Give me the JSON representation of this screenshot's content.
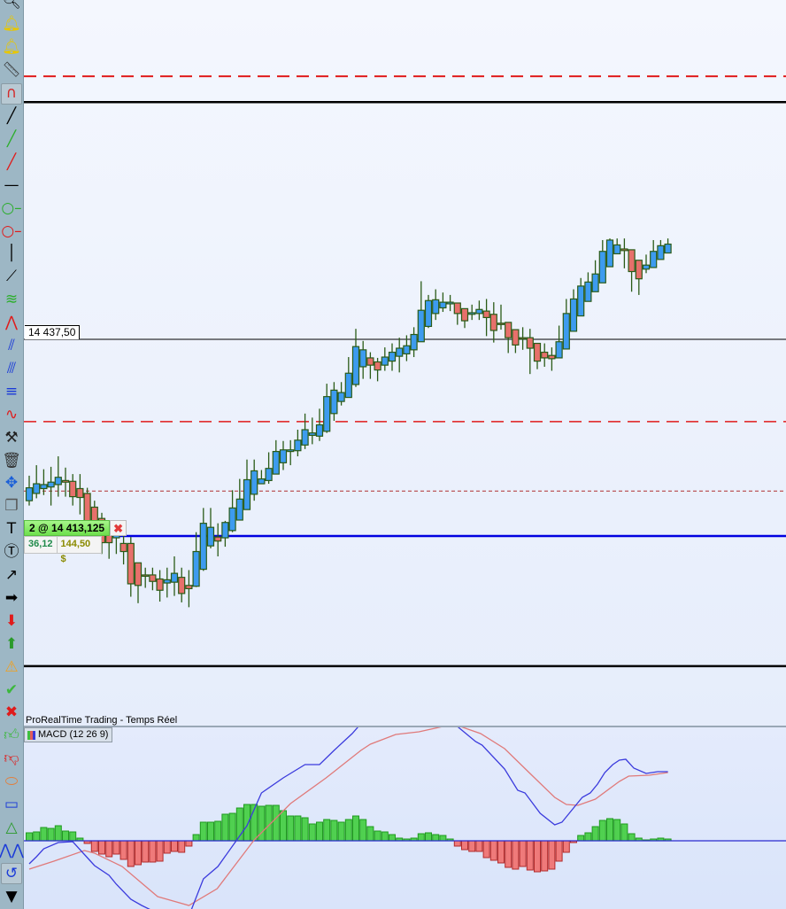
{
  "toolbar": {
    "background": "#9db7c5",
    "tools": [
      {
        "icon": "search-icon",
        "glyph": "🔍︎",
        "color": "#000"
      },
      {
        "icon": "alert-bell-icon",
        "glyph": "🔔︎",
        "color": "#e8c700"
      },
      {
        "icon": "alert-bell-cursor-icon",
        "glyph": "🔔︎",
        "color": "#e8c700"
      },
      {
        "icon": "ruler-icon",
        "glyph": "📏︎",
        "color": "#333"
      },
      {
        "icon": "magnet-icon",
        "glyph": "∩",
        "color": "#d42a2a",
        "active": true
      },
      {
        "icon": "trendline-black-icon",
        "glyph": "╱",
        "color": "#000"
      },
      {
        "icon": "trendline-green-icon",
        "glyph": "╱",
        "color": "#2cae2c"
      },
      {
        "icon": "trendline-red-icon",
        "glyph": "╱",
        "color": "#e01b1b"
      },
      {
        "icon": "horizontal-line-icon",
        "glyph": "—",
        "color": "#000"
      },
      {
        "icon": "ray-green-icon",
        "glyph": "○–",
        "color": "#2cae2c"
      },
      {
        "icon": "ray-red-icon",
        "glyph": "○–",
        "color": "#e01b1b"
      },
      {
        "icon": "vertical-line-icon",
        "glyph": "│",
        "color": "#000"
      },
      {
        "icon": "segment-icon",
        "glyph": "⟋",
        "color": "#000"
      },
      {
        "icon": "channel-icon",
        "glyph": "≋",
        "color": "#2cae2c"
      },
      {
        "icon": "fibonacci-fan-icon",
        "glyph": "⋀",
        "color": "#e01b1b"
      },
      {
        "icon": "parallel-channel-icon",
        "glyph": "⫽",
        "color": "#1a3ad8"
      },
      {
        "icon": "regression-channel-icon",
        "glyph": "⫻",
        "color": "#1a3ad8"
      },
      {
        "icon": "fibonacci-retracement-icon",
        "glyph": "≡",
        "color": "#1a3ad8"
      },
      {
        "icon": "trend-wave-icon",
        "glyph": "∿",
        "color": "#e01b1b"
      },
      {
        "icon": "tools-icon",
        "glyph": "⚒",
        "color": "#222"
      },
      {
        "icon": "trash-icon",
        "glyph": "🗑︎",
        "color": "#333"
      },
      {
        "icon": "move-icon",
        "glyph": "✥",
        "color": "#1a5fd8"
      },
      {
        "icon": "copy-icon",
        "glyph": "❐",
        "color": "#555"
      },
      {
        "icon": "text-icon",
        "glyph": "T",
        "color": "#000"
      },
      {
        "icon": "text-bubble-icon",
        "glyph": "Ⓣ",
        "color": "#000"
      },
      {
        "icon": "arrow-diagonal-icon",
        "glyph": "↗",
        "color": "#000"
      },
      {
        "icon": "arrow-right-icon",
        "glyph": "➡",
        "color": "#000"
      },
      {
        "icon": "arrow-down-icon",
        "glyph": "⬇",
        "color": "#e01b1b"
      },
      {
        "icon": "arrow-up-icon",
        "glyph": "⬆",
        "color": "#2a9a2a"
      },
      {
        "icon": "warning-icon",
        "glyph": "⚠",
        "color": "#f0a020"
      },
      {
        "icon": "checkmark-icon",
        "glyph": "✔",
        "color": "#3cb83c"
      },
      {
        "icon": "cross-icon",
        "glyph": "✖",
        "color": "#e01b1b"
      },
      {
        "icon": "thumbs-up-icon",
        "glyph": "👍︎",
        "color": "#3cb83c"
      },
      {
        "icon": "thumbs-down-icon",
        "glyph": "👎︎",
        "color": "#e01b1b"
      },
      {
        "icon": "ellipse-icon",
        "glyph": "⬭",
        "color": "#e08040"
      },
      {
        "icon": "rectangle-icon",
        "glyph": "▭",
        "color": "#1a3ad8"
      },
      {
        "icon": "triangle-icon",
        "glyph": "△",
        "color": "#2a9a2a"
      },
      {
        "icon": "pattern-icon",
        "glyph": "⋀⋀",
        "color": "#1a3ad8"
      },
      {
        "icon": "undo-cursor-icon",
        "glyph": "↺",
        "color": "#1a3ad8",
        "active": true
      },
      {
        "icon": "more-tools-dropdown-icon",
        "glyph": "▼",
        "color": "#000"
      }
    ]
  },
  "price_label": "14 437,50",
  "order": {
    "label": "2 @ 14 413,125",
    "close_icon": "close-icon",
    "points": "36,12",
    "pnl": "144,50 $"
  },
  "panel_title": "ProRealTime Trading - Temps Réel",
  "macd_legend": "MACD (12 26 9)",
  "colors": {
    "up": "#3d9bef",
    "down": "#e7706b",
    "candle_border": "#2a5b17",
    "hist_up": "#50d050",
    "hist_down": "#ef7a7a",
    "macd_line": "#3b3bdd",
    "signal_line": "#e07a7a",
    "zero_line": "#2a2ad0"
  },
  "chart_data": [
    {
      "type": "candlestick",
      "price_lines": [
        {
          "price": 14470.1,
          "color": "#e01b1b",
          "style": "dashed"
        },
        {
          "price": 14466.9,
          "color": "#000000",
          "style": "solid-thick"
        },
        {
          "price": 14437.5,
          "color": "#000000",
          "style": "solid",
          "label": "14 437,50"
        },
        {
          "price": 14427.3,
          "color": "#e01b1b",
          "style": "dashed"
        },
        {
          "price": 14418.7,
          "color": "#b03030",
          "style": "dashed-thin"
        },
        {
          "price": 14413.125,
          "color": "#0000e0",
          "style": "solid-thick"
        },
        {
          "price": 14397.0,
          "color": "#000000",
          "style": "solid-thick"
        }
      ],
      "ohlc": [
        [
          14417.5,
          14420.6,
          14416.9,
          14419.1
        ],
        [
          14418.4,
          14421.9,
          14417.8,
          14419.6
        ],
        [
          14419.0,
          14421.4,
          14418.2,
          14419.5
        ],
        [
          14419.2,
          14421.7,
          14416.9,
          14419.8
        ],
        [
          14419.5,
          14423.0,
          14418.0,
          14420.4
        ],
        [
          14420.0,
          14421.6,
          14418.0,
          14419.8
        ],
        [
          14419.9,
          14420.8,
          14416.9,
          14418.0
        ],
        [
          14419.0,
          14420.8,
          14415.8,
          14417.9
        ],
        [
          14418.4,
          14419.1,
          14411.4,
          14414.7
        ],
        [
          14416.7,
          14417.5,
          14412.5,
          14413.6
        ],
        [
          14415.3,
          14416.0,
          14410.9,
          14412.3
        ],
        [
          14413.8,
          14414.7,
          14410.3,
          14412.3
        ],
        [
          14412.9,
          14414.7,
          14410.9,
          14413.2
        ],
        [
          14412.2,
          14414.6,
          14409.6,
          14411.2
        ],
        [
          14412.2,
          14413.0,
          14405.6,
          14407.2
        ],
        [
          14409.8,
          14409.8,
          14404.8,
          14407.0
        ],
        [
          14408.3,
          14409.2,
          14406.7,
          14408.2
        ],
        [
          14408.3,
          14409.2,
          14406.4,
          14407.5
        ],
        [
          14407.8,
          14408.9,
          14405.0,
          14406.4
        ],
        [
          14407.3,
          14409.2,
          14405.5,
          14407.7
        ],
        [
          14407.4,
          14410.6,
          14405.7,
          14408.5
        ],
        [
          14408.0,
          14409.2,
          14404.9,
          14406.0
        ],
        [
          14407.0,
          14408.9,
          14404.3,
          14406.6
        ],
        [
          14406.9,
          14413.6,
          14406.8,
          14411.2
        ],
        [
          14409.0,
          14416.6,
          14408.8,
          14414.7
        ],
        [
          14411.9,
          14416.6,
          14411.6,
          14414.2
        ],
        [
          14413.0,
          14414.7,
          14410.6,
          14412.5
        ],
        [
          14412.9,
          14415.0,
          14411.8,
          14414.8
        ],
        [
          14413.8,
          14418.8,
          14413.6,
          14416.6
        ],
        [
          14415.1,
          14420.2,
          14415.1,
          14417.7
        ],
        [
          14416.4,
          14422.6,
          14416.4,
          14420.1
        ],
        [
          14418.3,
          14422.6,
          14417.5,
          14421.2
        ],
        [
          14419.6,
          14421.3,
          14419.6,
          14420.2
        ],
        [
          14420.0,
          14423.5,
          14419.6,
          14421.5
        ],
        [
          14420.8,
          14425.0,
          14420.8,
          14423.6
        ],
        [
          14422.2,
          14424.9,
          14421.3,
          14423.8
        ],
        [
          14423.6,
          14425.0,
          14421.9,
          14423.8
        ],
        [
          14423.7,
          14426.3,
          14423.0,
          14425.0
        ],
        [
          14424.4,
          14428.3,
          14423.9,
          14426.3
        ],
        [
          14425.6,
          14427.8,
          14424.5,
          14425.9
        ],
        [
          14425.5,
          14428.9,
          14424.9,
          14426.9
        ],
        [
          14426.1,
          14432.0,
          14425.9,
          14430.4
        ],
        [
          14428.3,
          14432.2,
          14427.4,
          14431.2
        ],
        [
          14429.8,
          14432.2,
          14429.3,
          14430.9
        ],
        [
          14430.3,
          14435.3,
          14430.3,
          14433.3
        ],
        [
          14431.9,
          14438.8,
          14431.6,
          14436.6
        ],
        [
          14434.1,
          14437.3,
          14432.6,
          14436.2
        ],
        [
          14435.2,
          14435.9,
          14432.6,
          14434.3
        ],
        [
          14434.7,
          14435.2,
          14432.3,
          14433.7
        ],
        [
          14434.3,
          14436.5,
          14433.6,
          14435.3
        ],
        [
          14434.8,
          14437.0,
          14433.6,
          14435.9
        ],
        [
          14435.4,
          14437.7,
          14433.4,
          14436.4
        ],
        [
          14435.7,
          14438.0,
          14434.8,
          14436.7
        ],
        [
          14436.2,
          14439.0,
          14435.3,
          14438.1
        ],
        [
          14437.2,
          14444.7,
          14437.2,
          14441.1
        ],
        [
          14439.1,
          14443.0,
          14438.9,
          14442.3
        ],
        [
          14440.7,
          14443.7,
          14439.9,
          14442.4
        ],
        [
          14441.4,
          14443.3,
          14440.9,
          14442.1
        ],
        [
          14441.9,
          14443.0,
          14441.0,
          14442.1
        ],
        [
          14442.0,
          14442.0,
          14439.3,
          14440.7
        ],
        [
          14441.3,
          14441.3,
          14438.9,
          14439.8
        ],
        [
          14440.6,
          14441.8,
          14439.9,
          14440.8
        ],
        [
          14440.7,
          14442.3,
          14439.9,
          14441.2
        ],
        [
          14441.0,
          14442.5,
          14437.9,
          14440.2
        ],
        [
          14440.6,
          14442.1,
          14437.1,
          14438.6
        ],
        [
          14439.5,
          14441.8,
          14438.7,
          14439.4
        ],
        [
          14439.6,
          14439.6,
          14435.8,
          14437.7
        ],
        [
          14438.7,
          14438.7,
          14435.8,
          14436.8
        ],
        [
          14437.7,
          14439.0,
          14436.2,
          14437.6
        ],
        [
          14437.7,
          14438.8,
          14433.2,
          14436.4
        ],
        [
          14437.0,
          14437.0,
          14433.8,
          14434.8
        ],
        [
          14435.9,
          14437.0,
          14434.1,
          14435.2
        ],
        [
          14435.5,
          14436.5,
          14433.6,
          14435.1
        ],
        [
          14435.2,
          14439.2,
          14435.2,
          14437.2
        ],
        [
          14436.3,
          14442.5,
          14436.3,
          14440.7
        ],
        [
          14438.5,
          14443.7,
          14438.5,
          14442.5
        ],
        [
          14440.4,
          14445.1,
          14440.4,
          14444.1
        ],
        [
          14442.2,
          14445.8,
          14442.2,
          14444.6
        ],
        [
          14443.4,
          14447.3,
          14443.4,
          14445.6
        ],
        [
          14444.5,
          14449.8,
          14444.5,
          14448.4
        ],
        [
          14446.5,
          14450.0,
          14446.5,
          14449.8
        ],
        [
          14448.1,
          14450.0,
          14448.1,
          14449.2
        ],
        [
          14448.7,
          14450.0,
          14446.3,
          14448.5
        ],
        [
          14448.6,
          14448.6,
          14443.4,
          14445.9
        ],
        [
          14447.3,
          14447.3,
          14443.0,
          14445.0
        ],
        [
          14446.2,
          14448.0,
          14445.7,
          14446.7
        ],
        [
          14446.4,
          14449.8,
          14446.4,
          14448.4
        ],
        [
          14447.4,
          14449.8,
          14447.4,
          14449.1
        ],
        [
          14448.2,
          14450.0,
          14448.2,
          14449.3
        ]
      ]
    },
    {
      "type": "bar+line",
      "title": "MACD (12 26 9)",
      "zero_line": 0,
      "histogram": [
        0.9,
        1.0,
        1.5,
        1.4,
        1.7,
        1.1,
        1.0,
        0.3,
        -0.3,
        -1.2,
        -1.5,
        -1.8,
        -1.5,
        -2.1,
        -2.9,
        -2.7,
        -2.4,
        -2.4,
        -2.3,
        -1.4,
        -1.2,
        -1.3,
        -0.6,
        0.7,
        2.1,
        2.1,
        2.2,
        3.0,
        3.1,
        3.7,
        4.1,
        4.1,
        3.9,
        4.0,
        4.0,
        3.4,
        2.8,
        2.8,
        2.6,
        1.9,
        2.1,
        2.4,
        2.3,
        2.1,
        2.4,
        2.8,
        2.4,
        1.6,
        1.1,
        1.0,
        0.7,
        0.3,
        0.2,
        0.3,
        0.8,
        0.9,
        0.7,
        0.6,
        0.2,
        -0.6,
        -1.0,
        -1.2,
        -1.2,
        -1.9,
        -2.2,
        -2.5,
        -3.0,
        -3.2,
        -2.9,
        -3.3,
        -3.5,
        -3.4,
        -3.2,
        -2.3,
        -1.3,
        -0.2,
        0.6,
        0.9,
        1.6,
        2.3,
        2.5,
        2.4,
        1.9,
        0.8,
        0.3,
        0.1,
        0.2,
        0.3,
        0.2
      ],
      "macd_line": [
        [
          0,
          -2.6
        ],
        [
          1,
          -1.8
        ],
        [
          2,
          -0.9
        ],
        [
          4,
          -0.2
        ],
        [
          6,
          -0.1
        ],
        [
          8,
          -1.9
        ],
        [
          9,
          -2.8
        ],
        [
          11,
          -3.9
        ],
        [
          12,
          -4.9
        ],
        [
          14,
          -6.6
        ],
        [
          15.5,
          -7.3
        ],
        [
          17,
          -7.9
        ],
        [
          19,
          -9.0
        ],
        [
          22,
          -8.5
        ],
        [
          24,
          -4.3
        ],
        [
          26,
          -2.9
        ],
        [
          28,
          -0.6
        ],
        [
          30,
          1.7
        ],
        [
          32,
          5.4
        ],
        [
          35,
          7.1
        ],
        [
          38,
          8.6
        ],
        [
          40,
          8.6
        ],
        [
          42,
          10.2
        ],
        [
          44.5,
          12.1
        ],
        [
          46,
          13.5
        ],
        [
          52,
          13.2
        ],
        [
          55,
          13.2
        ],
        [
          57,
          13.5
        ],
        [
          59,
          12.9
        ],
        [
          61.5,
          11.2
        ],
        [
          62.4,
          10.8
        ],
        [
          65.5,
          8.1
        ],
        [
          67.3,
          5.7
        ],
        [
          68.3,
          5.4
        ],
        [
          70.4,
          3.1
        ],
        [
          72.4,
          1.8
        ],
        [
          73.4,
          2.1
        ],
        [
          76.2,
          4.9
        ],
        [
          77.3,
          5.4
        ],
        [
          78.3,
          6.4
        ],
        [
          79.3,
          7.7
        ],
        [
          80.4,
          8.6
        ],
        [
          81.3,
          9.1
        ],
        [
          82.2,
          9.2
        ],
        [
          83.3,
          8.2
        ],
        [
          85,
          7.6
        ],
        [
          86.6,
          7.8
        ],
        [
          88,
          7.8
        ]
      ],
      "signal_line": [
        [
          0,
          -3.2
        ],
        [
          3.4,
          -2.3
        ],
        [
          7.6,
          -1.1
        ],
        [
          9,
          -1.4
        ],
        [
          12.8,
          -2.9
        ],
        [
          17.7,
          -6.3
        ],
        [
          22,
          -7.3
        ],
        [
          25.9,
          -5.4
        ],
        [
          31,
          0.1
        ],
        [
          36,
          4.2
        ],
        [
          40.9,
          7.1
        ],
        [
          45.7,
          10.2
        ],
        [
          47,
          10.9
        ],
        [
          50.5,
          12.0
        ],
        [
          53.7,
          12.3
        ],
        [
          57,
          12.9
        ],
        [
          59.4,
          12.9
        ],
        [
          62.2,
          12.1
        ],
        [
          65.5,
          10.4
        ],
        [
          69,
          7.6
        ],
        [
          72.4,
          4.9
        ],
        [
          74,
          4.1
        ],
        [
          75.6,
          4.0
        ],
        [
          78,
          4.7
        ],
        [
          81.3,
          6.7
        ],
        [
          82.6,
          7.3
        ],
        [
          85.4,
          7.4
        ],
        [
          88,
          7.7
        ]
      ]
    }
  ]
}
